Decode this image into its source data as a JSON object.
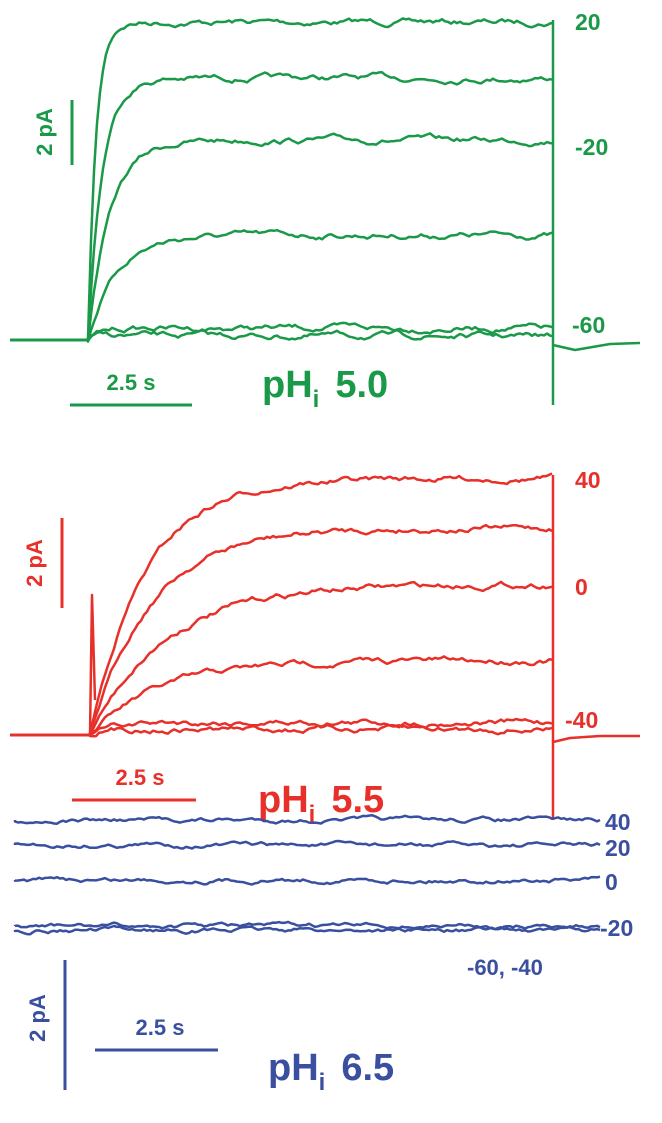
{
  "panels": [
    {
      "ph": {
        "label": "pH",
        "subscript": "i",
        "value": "5.0"
      },
      "current_scale": "2 pA",
      "time_scale": "2.5 s",
      "voltage_labels": [
        "20",
        "-20",
        "-60"
      ]
    },
    {
      "ph": {
        "label": "pH",
        "subscript": "i",
        "value": "5.5"
      },
      "current_scale": "2 pA",
      "time_scale": "2.5 s",
      "voltage_labels": [
        "40",
        "0",
        "-40"
      ]
    },
    {
      "ph": {
        "label": "pH",
        "subscript": "i",
        "value": "6.5"
      },
      "current_scale": "2 pA",
      "time_scale": "2.5 s",
      "voltage_labels": [
        "40",
        "20",
        "0",
        "-20",
        "-60, -40"
      ]
    }
  ]
}
